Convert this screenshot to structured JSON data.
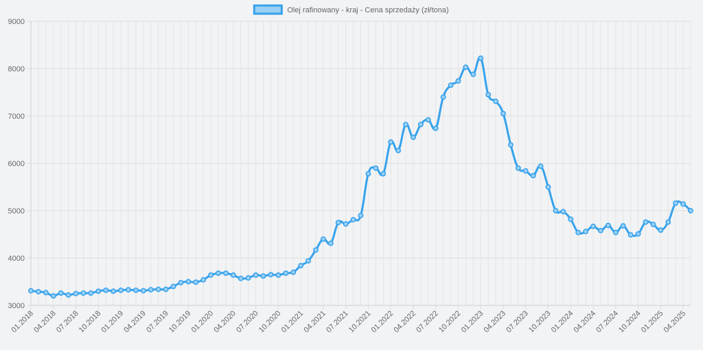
{
  "chart_data": {
    "type": "line",
    "series": [
      {
        "name": "Olej rafinowany - kraj - Cena sprzedaży (zł/tona)",
        "color": "#36a2eb",
        "fill_color": "#9ad0f5"
      }
    ],
    "x_tick_labels": [
      "01.2018",
      "04.2018",
      "07.2018",
      "10.2018",
      "01.2019",
      "04.2019",
      "07.2019",
      "10.2019",
      "01.2020",
      "04.2020",
      "07.2020",
      "10.2020",
      "01.2021",
      "04.2021",
      "07.2021",
      "10.2021",
      "01.2022",
      "04.2022",
      "07.2022",
      "10.2022",
      "01.2023",
      "04.2023",
      "07.2023",
      "10.2023",
      "01.2024",
      "04.2024",
      "07.2024",
      "10.2024",
      "01.2025",
      "04.2025"
    ],
    "y_ticks": [
      "3000",
      "4000",
      "5000",
      "6000",
      "7000",
      "8000",
      "9000"
    ],
    "ylim": [
      3000,
      9000
    ],
    "grid": true,
    "legend_position": "top",
    "values": [
      3310,
      3290,
      3270,
      3200,
      3260,
      3220,
      3250,
      3260,
      3260,
      3300,
      3320,
      3300,
      3320,
      3330,
      3320,
      3310,
      3330,
      3340,
      3340,
      3400,
      3480,
      3500,
      3490,
      3540,
      3640,
      3680,
      3680,
      3640,
      3570,
      3580,
      3640,
      3620,
      3650,
      3640,
      3680,
      3700,
      3840,
      3940,
      4170,
      4400,
      4310,
      4750,
      4720,
      4810,
      4900,
      5780,
      5900,
      5780,
      6450,
      6270,
      6820,
      6550,
      6820,
      6920,
      6740,
      7400,
      7650,
      7740,
      8030,
      7880,
      8220,
      7450,
      7310,
      7050,
      6390,
      5900,
      5840,
      5740,
      5940,
      5500,
      5000,
      4980,
      4820,
      4540,
      4560,
      4670,
      4580,
      4690,
      4540,
      4680,
      4490,
      4510,
      4760,
      4710,
      4590,
      4760,
      5160,
      5140,
      5000
    ]
  }
}
